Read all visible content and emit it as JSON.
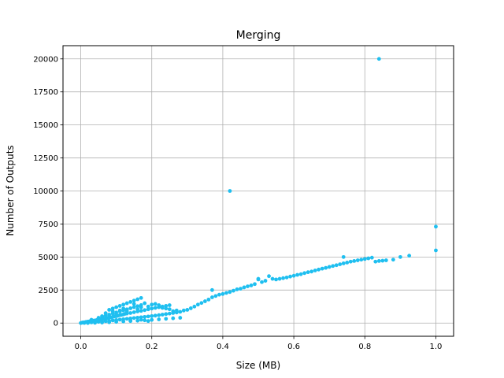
{
  "chart_data": {
    "type": "scatter",
    "title": "Merging",
    "xlabel": "Size (MB)",
    "ylabel": "Number of Outputs",
    "xlim": [
      -0.05,
      1.05
    ],
    "ylim": [
      -1000,
      21000
    ],
    "x_ticks": [
      0.0,
      0.2,
      0.4,
      0.6,
      0.8,
      1.0
    ],
    "x_tick_labels": [
      "0.0",
      "0.2",
      "0.4",
      "0.6",
      "0.8",
      "1.0"
    ],
    "y_ticks": [
      0,
      2500,
      5000,
      7500,
      10000,
      12500,
      15000,
      17500,
      20000
    ],
    "y_tick_labels": [
      "0",
      "2500",
      "5000",
      "7500",
      "10000",
      "12500",
      "15000",
      "17500",
      "20000"
    ],
    "grid": true,
    "marker_color": "#1fbff0",
    "series": [
      {
        "points": [
          [
            0.0,
            0
          ],
          [
            0.002,
            20
          ],
          [
            0.005,
            40
          ],
          [
            0.01,
            60
          ],
          [
            0.015,
            90
          ],
          [
            0.02,
            110
          ],
          [
            0.025,
            130
          ],
          [
            0.03,
            160
          ],
          [
            0.035,
            180
          ],
          [
            0.04,
            200
          ],
          [
            0.045,
            230
          ],
          [
            0.05,
            260
          ],
          [
            0.055,
            280
          ],
          [
            0.06,
            310
          ],
          [
            0.065,
            330
          ],
          [
            0.07,
            360
          ],
          [
            0.075,
            390
          ],
          [
            0.08,
            420
          ],
          [
            0.085,
            440
          ],
          [
            0.09,
            470
          ],
          [
            0.095,
            500
          ],
          [
            0.1,
            520
          ],
          [
            0.105,
            560
          ],
          [
            0.11,
            600
          ],
          [
            0.115,
            620
          ],
          [
            0.12,
            650
          ],
          [
            0.125,
            700
          ],
          [
            0.13,
            720
          ],
          [
            0.14,
            760
          ],
          [
            0.15,
            820
          ],
          [
            0.16,
            880
          ],
          [
            0.17,
            920
          ],
          [
            0.18,
            980
          ],
          [
            0.19,
            1040
          ],
          [
            0.2,
            1100
          ],
          [
            0.21,
            1150
          ],
          [
            0.22,
            1200
          ],
          [
            0.23,
            1250
          ],
          [
            0.24,
            1300
          ],
          [
            0.25,
            1350
          ],
          [
            0.01,
            10
          ],
          [
            0.02,
            30
          ],
          [
            0.03,
            50
          ],
          [
            0.04,
            70
          ],
          [
            0.05,
            90
          ],
          [
            0.06,
            120
          ],
          [
            0.07,
            140
          ],
          [
            0.08,
            170
          ],
          [
            0.09,
            200
          ],
          [
            0.1,
            230
          ],
          [
            0.11,
            260
          ],
          [
            0.12,
            290
          ],
          [
            0.13,
            320
          ],
          [
            0.14,
            350
          ],
          [
            0.15,
            380
          ],
          [
            0.16,
            410
          ],
          [
            0.17,
            440
          ],
          [
            0.18,
            470
          ],
          [
            0.19,
            500
          ],
          [
            0.2,
            530
          ],
          [
            0.21,
            560
          ],
          [
            0.22,
            600
          ],
          [
            0.23,
            640
          ],
          [
            0.24,
            680
          ],
          [
            0.25,
            720
          ],
          [
            0.26,
            760
          ],
          [
            0.27,
            800
          ],
          [
            0.28,
            850
          ],
          [
            0.02,
            0
          ],
          [
            0.04,
            20
          ],
          [
            0.06,
            40
          ],
          [
            0.08,
            60
          ],
          [
            0.1,
            90
          ],
          [
            0.12,
            120
          ],
          [
            0.14,
            150
          ],
          [
            0.16,
            180
          ],
          [
            0.18,
            210
          ],
          [
            0.2,
            240
          ],
          [
            0.22,
            280
          ],
          [
            0.24,
            320
          ],
          [
            0.26,
            360
          ],
          [
            0.28,
            400
          ],
          [
            0.05,
            400
          ],
          [
            0.06,
            480
          ],
          [
            0.07,
            560
          ],
          [
            0.08,
            640
          ],
          [
            0.09,
            720
          ],
          [
            0.1,
            800
          ],
          [
            0.11,
            880
          ],
          [
            0.12,
            960
          ],
          [
            0.13,
            1040
          ],
          [
            0.14,
            1120
          ],
          [
            0.15,
            1200
          ],
          [
            0.16,
            1280
          ],
          [
            0.17,
            1360
          ],
          [
            0.08,
            1000
          ],
          [
            0.09,
            1100
          ],
          [
            0.1,
            1200
          ],
          [
            0.11,
            1300
          ],
          [
            0.12,
            1400
          ],
          [
            0.13,
            1500
          ],
          [
            0.14,
            1600
          ],
          [
            0.15,
            1700
          ],
          [
            0.16,
            1800
          ],
          [
            0.17,
            1900
          ],
          [
            0.03,
            250
          ],
          [
            0.06,
            520
          ],
          [
            0.09,
            900
          ],
          [
            0.12,
            1100
          ],
          [
            0.15,
            1450
          ],
          [
            0.18,
            1500
          ],
          [
            0.21,
            1450
          ],
          [
            0.24,
            1100
          ],
          [
            0.27,
            950
          ],
          [
            0.1,
            650
          ],
          [
            0.13,
            900
          ],
          [
            0.16,
            1050
          ],
          [
            0.19,
            1250
          ],
          [
            0.22,
            1350
          ],
          [
            0.25,
            1050
          ],
          [
            0.07,
            750
          ],
          [
            0.11,
            950
          ],
          [
            0.17,
            1200
          ],
          [
            0.2,
            1400
          ],
          [
            0.23,
            1150
          ],
          [
            0.26,
            900
          ],
          [
            0.14,
            200
          ],
          [
            0.17,
            250
          ],
          [
            0.19,
            150
          ],
          [
            0.29,
            950
          ],
          [
            0.3,
            1000
          ],
          [
            0.31,
            1120
          ],
          [
            0.32,
            1250
          ],
          [
            0.33,
            1400
          ],
          [
            0.34,
            1520
          ],
          [
            0.35,
            1650
          ],
          [
            0.36,
            1780
          ],
          [
            0.37,
            1950
          ],
          [
            0.38,
            2050
          ],
          [
            0.39,
            2150
          ],
          [
            0.4,
            2200
          ],
          [
            0.41,
            2280
          ],
          [
            0.42,
            2350
          ],
          [
            0.43,
            2450
          ],
          [
            0.44,
            2550
          ],
          [
            0.45,
            2600
          ],
          [
            0.46,
            2700
          ],
          [
            0.47,
            2780
          ],
          [
            0.48,
            2850
          ],
          [
            0.49,
            2950
          ],
          [
            0.5,
            3300
          ],
          [
            0.51,
            3100
          ],
          [
            0.52,
            3200
          ],
          [
            0.53,
            3550
          ],
          [
            0.54,
            3350
          ],
          [
            0.55,
            3300
          ],
          [
            0.56,
            3350
          ],
          [
            0.57,
            3400
          ],
          [
            0.58,
            3450
          ],
          [
            0.59,
            3520
          ],
          [
            0.6,
            3580
          ],
          [
            0.61,
            3650
          ],
          [
            0.62,
            3700
          ],
          [
            0.63,
            3780
          ],
          [
            0.64,
            3850
          ],
          [
            0.65,
            3900
          ],
          [
            0.66,
            3980
          ],
          [
            0.67,
            4050
          ],
          [
            0.68,
            4120
          ],
          [
            0.69,
            4180
          ],
          [
            0.7,
            4250
          ],
          [
            0.71,
            4320
          ],
          [
            0.72,
            4380
          ],
          [
            0.73,
            4450
          ],
          [
            0.74,
            4520
          ],
          [
            0.75,
            4580
          ],
          [
            0.76,
            4650
          ],
          [
            0.77,
            4700
          ],
          [
            0.78,
            4750
          ],
          [
            0.79,
            4800
          ],
          [
            0.8,
            4850
          ],
          [
            0.81,
            4900
          ],
          [
            0.82,
            4950
          ],
          [
            0.83,
            4650
          ],
          [
            0.84,
            4700
          ],
          [
            0.85,
            4720
          ],
          [
            0.86,
            4750
          ],
          [
            0.88,
            4800
          ],
          [
            0.9,
            5000
          ],
          [
            0.925,
            5100
          ],
          [
            0.37,
            2500
          ],
          [
            0.5,
            3350
          ],
          [
            0.74,
            5000
          ],
          [
            0.42,
            10000
          ],
          [
            0.84,
            20000
          ],
          [
            1.0,
            7300
          ],
          [
            1.0,
            5500
          ]
        ]
      }
    ]
  }
}
